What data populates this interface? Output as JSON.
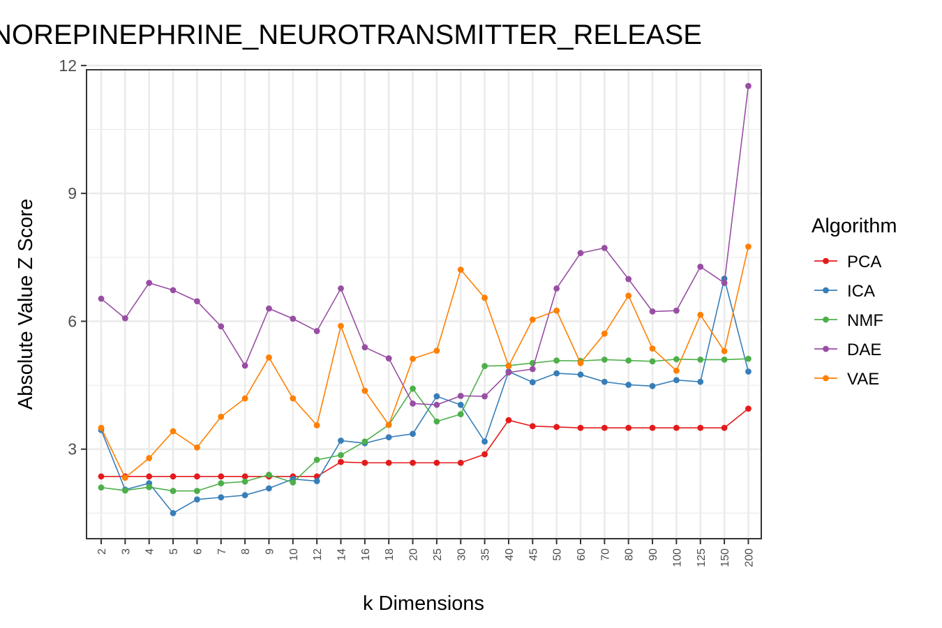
{
  "chart_data": {
    "type": "line",
    "title": "NOREPINEPHRINE_NEUROTRANSMITTER_RELEASE",
    "xlabel": "k Dimensions",
    "ylabel": "Absolute Value Z Score",
    "ylim": [
      0.9,
      11.9
    ],
    "yticks": [
      3,
      6,
      9,
      12
    ],
    "categories": [
      "2",
      "3",
      "4",
      "5",
      "6",
      "7",
      "8",
      "9",
      "10",
      "12",
      "14",
      "16",
      "18",
      "20",
      "25",
      "30",
      "35",
      "40",
      "45",
      "50",
      "60",
      "70",
      "80",
      "90",
      "100",
      "125",
      "150",
      "200"
    ],
    "grid": true,
    "legend": {
      "title": "Algorithm",
      "position": "right"
    },
    "series": [
      {
        "name": "PCA",
        "color": "#E41A1C",
        "values": [
          2.36,
          2.36,
          2.36,
          2.36,
          2.36,
          2.36,
          2.36,
          2.36,
          2.36,
          2.36,
          2.7,
          2.68,
          2.68,
          2.68,
          2.68,
          2.68,
          2.88,
          3.68,
          3.54,
          3.52,
          3.5,
          3.5,
          3.5,
          3.5,
          3.5,
          3.5,
          3.5,
          3.95
        ]
      },
      {
        "name": "ICA",
        "color": "#377EB8",
        "values": [
          3.45,
          2.05,
          2.2,
          1.5,
          1.82,
          1.87,
          1.92,
          2.08,
          2.3,
          2.25,
          3.2,
          3.14,
          3.28,
          3.36,
          4.24,
          4.04,
          3.18,
          4.82,
          4.57,
          4.78,
          4.75,
          4.58,
          4.51,
          4.48,
          4.62,
          4.58,
          7.0,
          4.82
        ]
      },
      {
        "name": "NMF",
        "color": "#4DAF4A",
        "values": [
          2.1,
          2.03,
          2.11,
          2.02,
          2.02,
          2.2,
          2.24,
          2.4,
          2.22,
          2.75,
          2.86,
          3.18,
          3.57,
          4.42,
          3.65,
          3.82,
          4.95,
          4.96,
          5.02,
          5.08,
          5.07,
          5.1,
          5.08,
          5.06,
          5.11,
          5.1,
          5.1,
          5.12
        ]
      },
      {
        "name": "DAE",
        "color": "#984EA3",
        "values": [
          6.53,
          6.07,
          6.9,
          6.73,
          6.47,
          5.88,
          4.96,
          6.3,
          6.06,
          5.77,
          6.77,
          5.39,
          5.13,
          4.07,
          4.04,
          4.25,
          4.24,
          4.8,
          4.88,
          6.77,
          7.6,
          7.72,
          6.99,
          6.23,
          6.25,
          7.28,
          6.9,
          11.52
        ]
      },
      {
        "name": "VAE",
        "color": "#FF7F00",
        "values": [
          3.5,
          2.33,
          2.79,
          3.42,
          3.04,
          3.76,
          4.19,
          5.15,
          4.19,
          3.56,
          5.89,
          4.37,
          3.57,
          5.12,
          5.31,
          7.21,
          6.55,
          4.95,
          6.04,
          6.25,
          5.02,
          5.71,
          6.6,
          5.36,
          4.84,
          6.15,
          5.3,
          7.75
        ]
      }
    ]
  }
}
